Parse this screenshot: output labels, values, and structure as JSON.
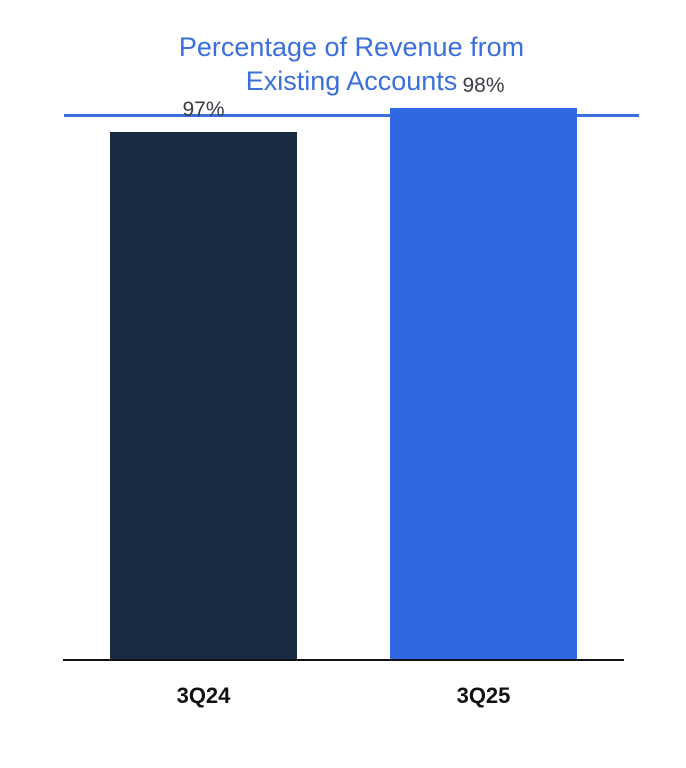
{
  "chart_data": {
    "type": "bar",
    "title": "Percentage of Revenue from Existing Accounts",
    "title_lines": [
      "Percentage of Revenue from",
      "Existing Accounts"
    ],
    "categories": [
      "3Q24",
      "3Q25"
    ],
    "values": [
      97,
      98
    ],
    "data_labels": [
      "97%",
      "98%"
    ],
    "colors": [
      "#182b42",
      "#3068e3"
    ],
    "title_color": "#3a6fdc",
    "ylim": [
      0,
      100
    ],
    "grid": false,
    "legend": "none"
  }
}
